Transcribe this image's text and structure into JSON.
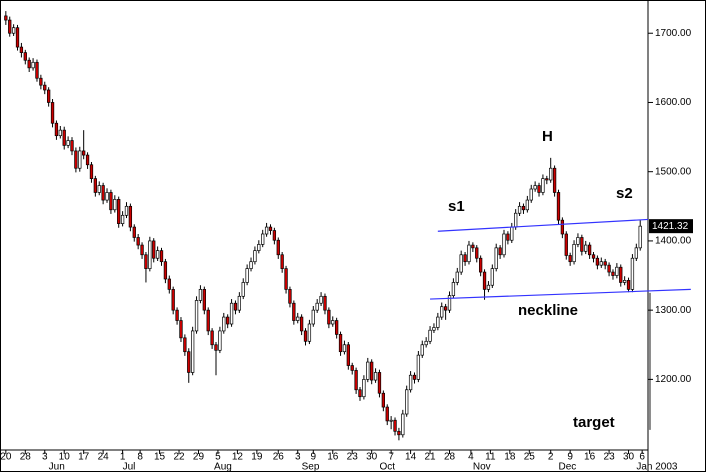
{
  "chart_data": {
    "type": "candlestick",
    "ylim": [
      1098,
      1748
    ],
    "xlim": [
      -1.5,
      165
    ],
    "yticks": [
      {
        "value": 1200,
        "label": "1200.00"
      },
      {
        "value": 1300,
        "label": "1300.00"
      },
      {
        "value": 1400,
        "label": "1400.00"
      },
      {
        "value": 1500,
        "label": "1500.00"
      },
      {
        "value": 1600,
        "label": "1600.00"
      },
      {
        "value": 1700,
        "label": "1700.00"
      }
    ],
    "xticks": [
      {
        "value": 0,
        "label": "20"
      },
      {
        "value": 5,
        "label": "28"
      },
      {
        "value": 10,
        "label": "3"
      },
      {
        "value": 15,
        "label": "10"
      },
      {
        "value": 20,
        "label": "17"
      },
      {
        "value": 25,
        "label": "24"
      },
      {
        "value": 30,
        "label": "1"
      },
      {
        "value": 34.5,
        "label": "8"
      },
      {
        "value": 39.5,
        "label": "15"
      },
      {
        "value": 44.5,
        "label": "22"
      },
      {
        "value": 49.5,
        "label": "29"
      },
      {
        "value": 54.5,
        "label": "5"
      },
      {
        "value": 59.5,
        "label": "12"
      },
      {
        "value": 64.5,
        "label": "19"
      },
      {
        "value": 70,
        "label": "26"
      },
      {
        "value": 75,
        "label": "3"
      },
      {
        "value": 79,
        "label": "9"
      },
      {
        "value": 84,
        "label": "16"
      },
      {
        "value": 89,
        "label": "23"
      },
      {
        "value": 94,
        "label": "30"
      },
      {
        "value": 99,
        "label": "7"
      },
      {
        "value": 104,
        "label": "14"
      },
      {
        "value": 109,
        "label": "21"
      },
      {
        "value": 114,
        "label": "28"
      },
      {
        "value": 119.5,
        "label": "4"
      },
      {
        "value": 124.5,
        "label": "11"
      },
      {
        "value": 129.5,
        "label": "18"
      },
      {
        "value": 134.5,
        "label": "25"
      },
      {
        "value": 140,
        "label": "2"
      },
      {
        "value": 145,
        "label": "9"
      },
      {
        "value": 150,
        "label": "16"
      },
      {
        "value": 155,
        "label": "23"
      },
      {
        "value": 160,
        "label": "30"
      },
      {
        "value": 163.5,
        "label": "6"
      }
    ],
    "month_labels": [
      {
        "value": 11,
        "label": "Jun"
      },
      {
        "value": 30,
        "label": "Jul"
      },
      {
        "value": 53.5,
        "label": "Aug"
      },
      {
        "value": 76,
        "label": "Sep"
      },
      {
        "value": 96,
        "label": "Oct"
      },
      {
        "value": 120,
        "label": "Nov"
      },
      {
        "value": 142,
        "label": "Dec"
      },
      {
        "value": 162,
        "label": "Jan 2003"
      }
    ],
    "up_color": "#ffffff",
    "down_color": "#cc0000",
    "grid": false,
    "last_price": 1421.32,
    "annotations": [
      "s1",
      "H",
      "s2",
      "neckline",
      "target"
    ],
    "trendlines": [
      {
        "x": [
          111,
          165
        ],
        "y": [
          1414,
          1431
        ],
        "color": "#3333ff"
      },
      {
        "x": [
          109,
          176
        ],
        "y": [
          1316,
          1330
        ],
        "color": "#3333ff"
      },
      {
        "x": [
          165.5,
          165.5
        ],
        "y": [
          1325,
          1127
        ],
        "color": "#888888"
      }
    ],
    "ohlc": [
      [
        1725,
        1732,
        1712,
        1719
      ],
      [
        1719,
        1724,
        1695,
        1700
      ],
      [
        1700,
        1713,
        1696,
        1708
      ],
      [
        1708,
        1712,
        1675,
        1680
      ],
      [
        1680,
        1686,
        1665,
        1672
      ],
      [
        1672,
        1676,
        1655,
        1661
      ],
      [
        1661,
        1665,
        1644,
        1650
      ],
      [
        1650,
        1664,
        1646,
        1658
      ],
      [
        1658,
        1662,
        1630,
        1635
      ],
      [
        1635,
        1640,
        1619,
        1625
      ],
      [
        1625,
        1630,
        1612,
        1618
      ],
      [
        1618,
        1622,
        1594,
        1600
      ],
      [
        1600,
        1605,
        1564,
        1570
      ],
      [
        1570,
        1574,
        1546,
        1552
      ],
      [
        1552,
        1566,
        1548,
        1560
      ],
      [
        1560,
        1565,
        1532,
        1538
      ],
      [
        1538,
        1551,
        1534,
        1545
      ],
      [
        1545,
        1550,
        1524,
        1530
      ],
      [
        1530,
        1535,
        1499,
        1505
      ],
      [
        1505,
        1536,
        1500,
        1530
      ],
      [
        1530,
        1560,
        1518,
        1524
      ],
      [
        1524,
        1528,
        1504,
        1510
      ],
      [
        1510,
        1514,
        1484,
        1490
      ],
      [
        1490,
        1494,
        1464,
        1470
      ],
      [
        1470,
        1486,
        1466,
        1480
      ],
      [
        1480,
        1484,
        1453,
        1459
      ],
      [
        1459,
        1476,
        1455,
        1470
      ],
      [
        1470,
        1474,
        1439,
        1445
      ],
      [
        1445,
        1466,
        1441,
        1460
      ],
      [
        1460,
        1464,
        1419,
        1425
      ],
      [
        1425,
        1443,
        1421,
        1437
      ],
      [
        1437,
        1456,
        1433,
        1450
      ],
      [
        1450,
        1454,
        1414,
        1420
      ],
      [
        1420,
        1424,
        1399,
        1405
      ],
      [
        1405,
        1410,
        1388,
        1394
      ],
      [
        1394,
        1398,
        1374,
        1380
      ],
      [
        1380,
        1384,
        1340,
        1360
      ],
      [
        1360,
        1406,
        1356,
        1400
      ],
      [
        1400,
        1404,
        1369,
        1375
      ],
      [
        1375,
        1392,
        1371,
        1386
      ],
      [
        1386,
        1390,
        1364,
        1370
      ],
      [
        1370,
        1374,
        1339,
        1345
      ],
      [
        1345,
        1350,
        1324,
        1330
      ],
      [
        1330,
        1334,
        1294,
        1300
      ],
      [
        1300,
        1304,
        1279,
        1285
      ],
      [
        1285,
        1290,
        1254,
        1260
      ],
      [
        1260,
        1265,
        1234,
        1240
      ],
      [
        1240,
        1245,
        1195,
        1210
      ],
      [
        1210,
        1276,
        1206,
        1270
      ],
      [
        1270,
        1320,
        1266,
        1314
      ],
      [
        1314,
        1336,
        1310,
        1330
      ],
      [
        1330,
        1334,
        1294,
        1300
      ],
      [
        1300,
        1304,
        1264,
        1270
      ],
      [
        1270,
        1274,
        1244,
        1250
      ],
      [
        1250,
        1254,
        1206,
        1242
      ],
      [
        1242,
        1276,
        1238,
        1270
      ],
      [
        1270,
        1296,
        1266,
        1290
      ],
      [
        1290,
        1294,
        1274,
        1280
      ],
      [
        1280,
        1316,
        1276,
        1310
      ],
      [
        1310,
        1314,
        1294,
        1300
      ],
      [
        1300,
        1326,
        1296,
        1320
      ],
      [
        1320,
        1346,
        1316,
        1340
      ],
      [
        1340,
        1366,
        1336,
        1360
      ],
      [
        1360,
        1376,
        1356,
        1370
      ],
      [
        1370,
        1392,
        1366,
        1386
      ],
      [
        1386,
        1401,
        1382,
        1395
      ],
      [
        1395,
        1416,
        1391,
        1410
      ],
      [
        1410,
        1426,
        1406,
        1420
      ],
      [
        1420,
        1424,
        1409,
        1415
      ],
      [
        1415,
        1419,
        1395,
        1401
      ],
      [
        1401,
        1405,
        1374,
        1380
      ],
      [
        1380,
        1384,
        1354,
        1360
      ],
      [
        1360,
        1364,
        1324,
        1330
      ],
      [
        1330,
        1334,
        1304,
        1310
      ],
      [
        1310,
        1314,
        1279,
        1285
      ],
      [
        1285,
        1296,
        1281,
        1290
      ],
      [
        1290,
        1294,
        1264,
        1270
      ],
      [
        1270,
        1274,
        1249,
        1255
      ],
      [
        1255,
        1286,
        1251,
        1280
      ],
      [
        1280,
        1306,
        1276,
        1300
      ],
      [
        1300,
        1316,
        1296,
        1310
      ],
      [
        1310,
        1326,
        1306,
        1320
      ],
      [
        1320,
        1324,
        1294,
        1300
      ],
      [
        1300,
        1304,
        1274,
        1280
      ],
      [
        1280,
        1291,
        1276,
        1285
      ],
      [
        1285,
        1289,
        1259,
        1265
      ],
      [
        1265,
        1269,
        1234,
        1240
      ],
      [
        1240,
        1256,
        1236,
        1250
      ],
      [
        1250,
        1254,
        1214,
        1220
      ],
      [
        1220,
        1224,
        1207,
        1213
      ],
      [
        1213,
        1217,
        1179,
        1185
      ],
      [
        1185,
        1189,
        1169,
        1175
      ],
      [
        1175,
        1206,
        1171,
        1200
      ],
      [
        1200,
        1231,
        1196,
        1225
      ],
      [
        1225,
        1229,
        1193,
        1199
      ],
      [
        1199,
        1216,
        1195,
        1210
      ],
      [
        1210,
        1214,
        1174,
        1180
      ],
      [
        1180,
        1184,
        1154,
        1160
      ],
      [
        1160,
        1164,
        1134,
        1140
      ],
      [
        1140,
        1147,
        1128,
        1141
      ],
      [
        1141,
        1145,
        1119,
        1125
      ],
      [
        1125,
        1130,
        1112,
        1120
      ],
      [
        1120,
        1156,
        1116,
        1150
      ],
      [
        1150,
        1191,
        1146,
        1185
      ],
      [
        1185,
        1212,
        1181,
        1206
      ],
      [
        1206,
        1210,
        1194,
        1200
      ],
      [
        1200,
        1241,
        1196,
        1235
      ],
      [
        1235,
        1256,
        1231,
        1250
      ],
      [
        1250,
        1261,
        1246,
        1255
      ],
      [
        1255,
        1277,
        1251,
        1271
      ],
      [
        1271,
        1281,
        1267,
        1275
      ],
      [
        1275,
        1296,
        1271,
        1290
      ],
      [
        1290,
        1311,
        1286,
        1305
      ],
      [
        1305,
        1309,
        1286,
        1300
      ],
      [
        1300,
        1327,
        1296,
        1321
      ],
      [
        1321,
        1346,
        1317,
        1340
      ],
      [
        1340,
        1361,
        1336,
        1355
      ],
      [
        1355,
        1386,
        1351,
        1380
      ],
      [
        1380,
        1384,
        1364,
        1370
      ],
      [
        1370,
        1400,
        1366,
        1394
      ],
      [
        1394,
        1398,
        1384,
        1390
      ],
      [
        1390,
        1394,
        1369,
        1375
      ],
      [
        1375,
        1379,
        1349,
        1355
      ],
      [
        1355,
        1359,
        1315,
        1330
      ],
      [
        1330,
        1342,
        1326,
        1336
      ],
      [
        1336,
        1366,
        1332,
        1360
      ],
      [
        1360,
        1396,
        1356,
        1390
      ],
      [
        1390,
        1394,
        1374,
        1380
      ],
      [
        1380,
        1416,
        1376,
        1410
      ],
      [
        1410,
        1414,
        1395,
        1401
      ],
      [
        1401,
        1426,
        1397,
        1420
      ],
      [
        1420,
        1446,
        1416,
        1440
      ],
      [
        1440,
        1456,
        1436,
        1450
      ],
      [
        1450,
        1454,
        1439,
        1445
      ],
      [
        1445,
        1465,
        1441,
        1459
      ],
      [
        1459,
        1481,
        1455,
        1475
      ],
      [
        1475,
        1486,
        1471,
        1480
      ],
      [
        1480,
        1484,
        1464,
        1470
      ],
      [
        1470,
        1496,
        1466,
        1490
      ],
      [
        1490,
        1494,
        1482,
        1488
      ],
      [
        1488,
        1520,
        1484,
        1505
      ],
      [
        1505,
        1509,
        1464,
        1470
      ],
      [
        1470,
        1474,
        1424,
        1430
      ],
      [
        1430,
        1434,
        1404,
        1410
      ],
      [
        1410,
        1414,
        1373,
        1379
      ],
      [
        1379,
        1383,
        1364,
        1370
      ],
      [
        1370,
        1401,
        1366,
        1395
      ],
      [
        1395,
        1411,
        1391,
        1405
      ],
      [
        1405,
        1409,
        1379,
        1385
      ],
      [
        1385,
        1400,
        1381,
        1394
      ],
      [
        1394,
        1398,
        1374,
        1380
      ],
      [
        1380,
        1384,
        1369,
        1375
      ],
      [
        1375,
        1379,
        1359,
        1365
      ],
      [
        1365,
        1376,
        1361,
        1370
      ],
      [
        1370,
        1374,
        1359,
        1365
      ],
      [
        1365,
        1369,
        1349,
        1355
      ],
      [
        1355,
        1359,
        1344,
        1350
      ],
      [
        1350,
        1368,
        1346,
        1362
      ],
      [
        1362,
        1366,
        1334,
        1340
      ],
      [
        1340,
        1349,
        1336,
        1343
      ],
      [
        1343,
        1347,
        1326,
        1330
      ],
      [
        1330,
        1381,
        1326,
        1375
      ],
      [
        1375,
        1396,
        1371,
        1390
      ],
      [
        1390,
        1430,
        1386,
        1421.32
      ]
    ]
  }
}
